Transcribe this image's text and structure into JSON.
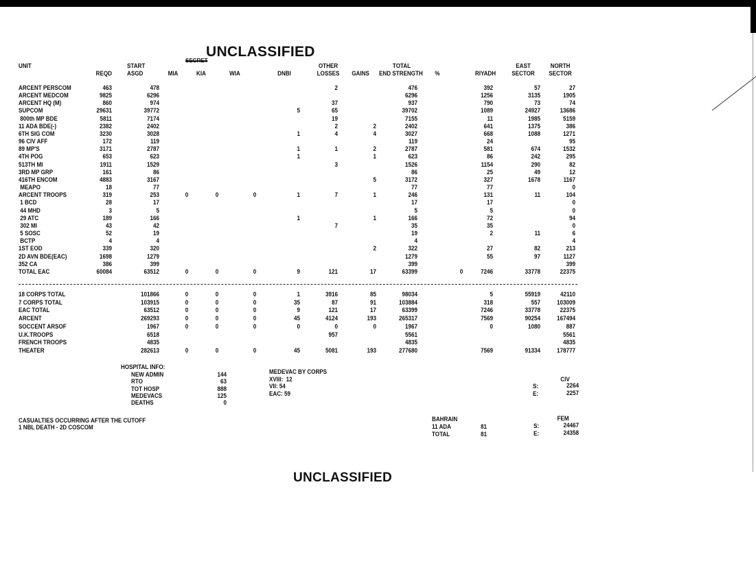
{
  "classification_top": "UNCLASSIFIED",
  "classification_bottom": "UNCLASSIFIED",
  "struck_marking": "SECRET",
  "headers": {
    "unit": "UNIT",
    "reqd": "REQD",
    "start_top": "START",
    "asgd": "ASGD",
    "mia": "MIA",
    "kia": "KIA",
    "wia": "WIA",
    "dnbi": "DNBI",
    "other_top": "OTHER",
    "losses": "LOSSES",
    "gains": "GAINS",
    "total_top": "TOTAL",
    "end_strength": "END STRENGTH",
    "pct": "%",
    "riyadh": "RIYADH",
    "east_top": "EAST",
    "east_bottom": "SECTOR",
    "north_top": "NORTH",
    "north_bottom": "SECTOR"
  },
  "columns": [
    "unit",
    "reqd",
    "asgd",
    "mia",
    "kia",
    "wia",
    "dnbi",
    "other_losses",
    "gains",
    "end_strength",
    "pct",
    "riyadh",
    "east_sector",
    "north_sector"
  ],
  "units": [
    [
      "ARCENT PERSCOM",
      "463",
      "478",
      "",
      "",
      "",
      "",
      "2",
      "",
      "476",
      "",
      "392",
      "57",
      "27"
    ],
    [
      "ARCENT MEDCOM",
      "9825",
      "6296",
      "",
      "",
      "",
      "",
      "",
      "",
      "6296",
      "",
      "1256",
      "3135",
      "1905"
    ],
    [
      "ARCENT HQ (M)",
      "860",
      "974",
      "",
      "",
      "",
      "",
      "37",
      "",
      "937",
      "",
      "790",
      "73",
      "74"
    ],
    [
      "SUPCOM",
      "29631",
      "39772",
      "",
      "",
      "",
      "5",
      "65",
      "",
      "39702",
      "",
      "1089",
      "24927",
      "13686"
    ],
    [
      " 800th MP BDE",
      "5811",
      "7174",
      "",
      "",
      "",
      "",
      "19",
      "",
      "7155",
      "",
      "11",
      "1985",
      "5159"
    ],
    [
      "11 ADA BDE(-)",
      "2382",
      "2402",
      "",
      "",
      "",
      "",
      "2",
      "2",
      "2402",
      "",
      "641",
      "1375",
      "386"
    ],
    [
      "6TH SIG COM",
      "3230",
      "3028",
      "",
      "",
      "",
      "1",
      "4",
      "4",
      "3027",
      "",
      "668",
      "1088",
      "1271"
    ],
    [
      "96 CIV AFF",
      "172",
      "119",
      "",
      "",
      "",
      "",
      "",
      "",
      "119",
      "",
      "24",
      "",
      "95"
    ],
    [
      "89 MP'S",
      "3171",
      "2787",
      "",
      "",
      "",
      "1",
      "1",
      "2",
      "2787",
      "",
      "581",
      "674",
      "1532"
    ],
    [
      "4TH POG",
      "653",
      "623",
      "",
      "",
      "",
      "1",
      "",
      "1",
      "623",
      "",
      "86",
      "242",
      "295"
    ],
    [
      "513TH MI",
      "1911",
      "1529",
      "",
      "",
      "",
      "",
      "3",
      "",
      "1526",
      "",
      "1154",
      "290",
      "82"
    ],
    [
      "3RD MP GRP",
      "161",
      "86",
      "",
      "",
      "",
      "",
      "",
      "",
      "86",
      "",
      "25",
      "49",
      "12"
    ],
    [
      "416TH ENCOM",
      "4883",
      "3167",
      "",
      "",
      "",
      "",
      "",
      "5",
      "3172",
      "",
      "327",
      "1678",
      "1167"
    ],
    [
      " MEAPO",
      "18",
      "77",
      "",
      "",
      "",
      "",
      "",
      "",
      "77",
      "",
      "77",
      "",
      "0"
    ],
    [
      "ARCENT TROOPS",
      "319",
      "253",
      "0",
      "0",
      "0",
      "1",
      "7",
      "1",
      "246",
      "",
      "131",
      "11",
      "104"
    ],
    [
      " 1 BCD",
      "28",
      "17",
      "",
      "",
      "",
      "",
      "",
      "",
      "17",
      "",
      "17",
      "",
      "0"
    ],
    [
      " 44 MHD",
      "3",
      "5",
      "",
      "",
      "",
      "",
      "",
      "",
      "5",
      "",
      "5",
      "",
      "0"
    ],
    [
      " 29 ATC",
      "189",
      "166",
      "",
      "",
      "",
      "1",
      "",
      "1",
      "166",
      "",
      "72",
      "",
      "94"
    ],
    [
      " 302 MI",
      "43",
      "42",
      "",
      "",
      "",
      "",
      "7",
      "",
      "35",
      "",
      "35",
      "",
      "0"
    ],
    [
      " 5 SOSC",
      "52",
      "19",
      "",
      "",
      "",
      "",
      "",
      "",
      "19",
      "",
      "2",
      "11",
      "6"
    ],
    [
      " BCTP",
      "4",
      "4",
      "",
      "",
      "",
      "",
      "",
      "",
      "4",
      "",
      "",
      "",
      "4"
    ],
    [
      "1ST EOD",
      "339",
      "320",
      "",
      "",
      "",
      "",
      "",
      "2",
      "322",
      "",
      "27",
      "82",
      "213"
    ],
    [
      "2D AVN BDE(EAC)",
      "1698",
      "1279",
      "",
      "",
      "",
      "",
      "",
      "",
      "1279",
      "",
      "55",
      "97",
      "1127"
    ],
    [
      "352 CA",
      "386",
      "399",
      "",
      "",
      "",
      "",
      "",
      "",
      "399",
      "",
      "",
      "",
      "399"
    ],
    [
      "TOTAL EAC",
      "60084",
      "63512",
      "0",
      "0",
      "0",
      "9",
      "121",
      "17",
      "63399",
      "0",
      "7246",
      "33778",
      "22375"
    ]
  ],
  "totals": [
    [
      "18 CORPS TOTAL",
      "",
      "101866",
      "0",
      "0",
      "0",
      "1",
      "3916",
      "85",
      "98034",
      "",
      "5",
      "55919",
      "42110"
    ],
    [
      "7 CORPS TOTAL",
      "",
      "103915",
      "0",
      "0",
      "0",
      "35",
      "87",
      "91",
      "103884",
      "",
      "318",
      "557",
      "103009"
    ],
    [
      "EAC TOTAL",
      "",
      "63512",
      "0",
      "0",
      "0",
      "9",
      "121",
      "17",
      "63399",
      "",
      "7246",
      "33778",
      "22375"
    ],
    [
      "ARCENT",
      "",
      "269293",
      "0",
      "0",
      "0",
      "45",
      "4124",
      "193",
      "265317",
      "",
      "7569",
      "90254",
      "167494"
    ],
    [
      "SOCCENT ARSOF",
      "",
      "1967",
      "0",
      "0",
      "0",
      "0",
      "0",
      "0",
      "1967",
      "",
      "0",
      "1080",
      "887"
    ],
    [
      "U.K.TROOPS",
      "",
      "6518",
      "",
      "",
      "",
      "",
      "957",
      "",
      "5561",
      "",
      "",
      "",
      "5561"
    ],
    [
      "FRENCH TROOPS",
      "",
      "4835",
      "",
      "",
      "",
      "",
      "",
      "",
      "4835",
      "",
      "",
      "",
      "4835"
    ],
    [
      "THEATER",
      "",
      "282613",
      "0",
      "0",
      "0",
      "45",
      "5081",
      "193",
      "277680",
      "",
      "7569",
      "91334",
      "178777"
    ]
  ],
  "hospital": {
    "title": "HOSPITAL INFO:",
    "items": [
      {
        "label": "NEW ADMIN",
        "value": "144"
      },
      {
        "label": "RTO",
        "value": "63"
      },
      {
        "label": "TOT HOSP",
        "value": "888"
      },
      {
        "label": "MEDEVACS",
        "value": "125"
      },
      {
        "label": "DEATHS",
        "value": "0"
      }
    ]
  },
  "medevac": {
    "title": "MEDEVAC BY CORPS",
    "lines": [
      "XVIII:  12",
      "VII: 54",
      "EAC: 59"
    ]
  },
  "civ": {
    "title": "CIV",
    "s_label": "S:",
    "s_value": "2264",
    "e_label": "E:",
    "e_value": "2257"
  },
  "fem": {
    "title": "FEM",
    "s_label": "S:",
    "s_value": "24467",
    "e_label": "E:",
    "e_value": "24358"
  },
  "bahrain": {
    "title": "BAHRAIN",
    "rows": [
      {
        "label": "11 ADA",
        "value": "81"
      },
      {
        "label": "TOTAL",
        "value": "81"
      }
    ]
  },
  "cutoff": {
    "title": "CASUALTIES OCCURRING AFTER THE CUTOFF",
    "line": "1 NBL DEATH - 2D COSCOM"
  }
}
